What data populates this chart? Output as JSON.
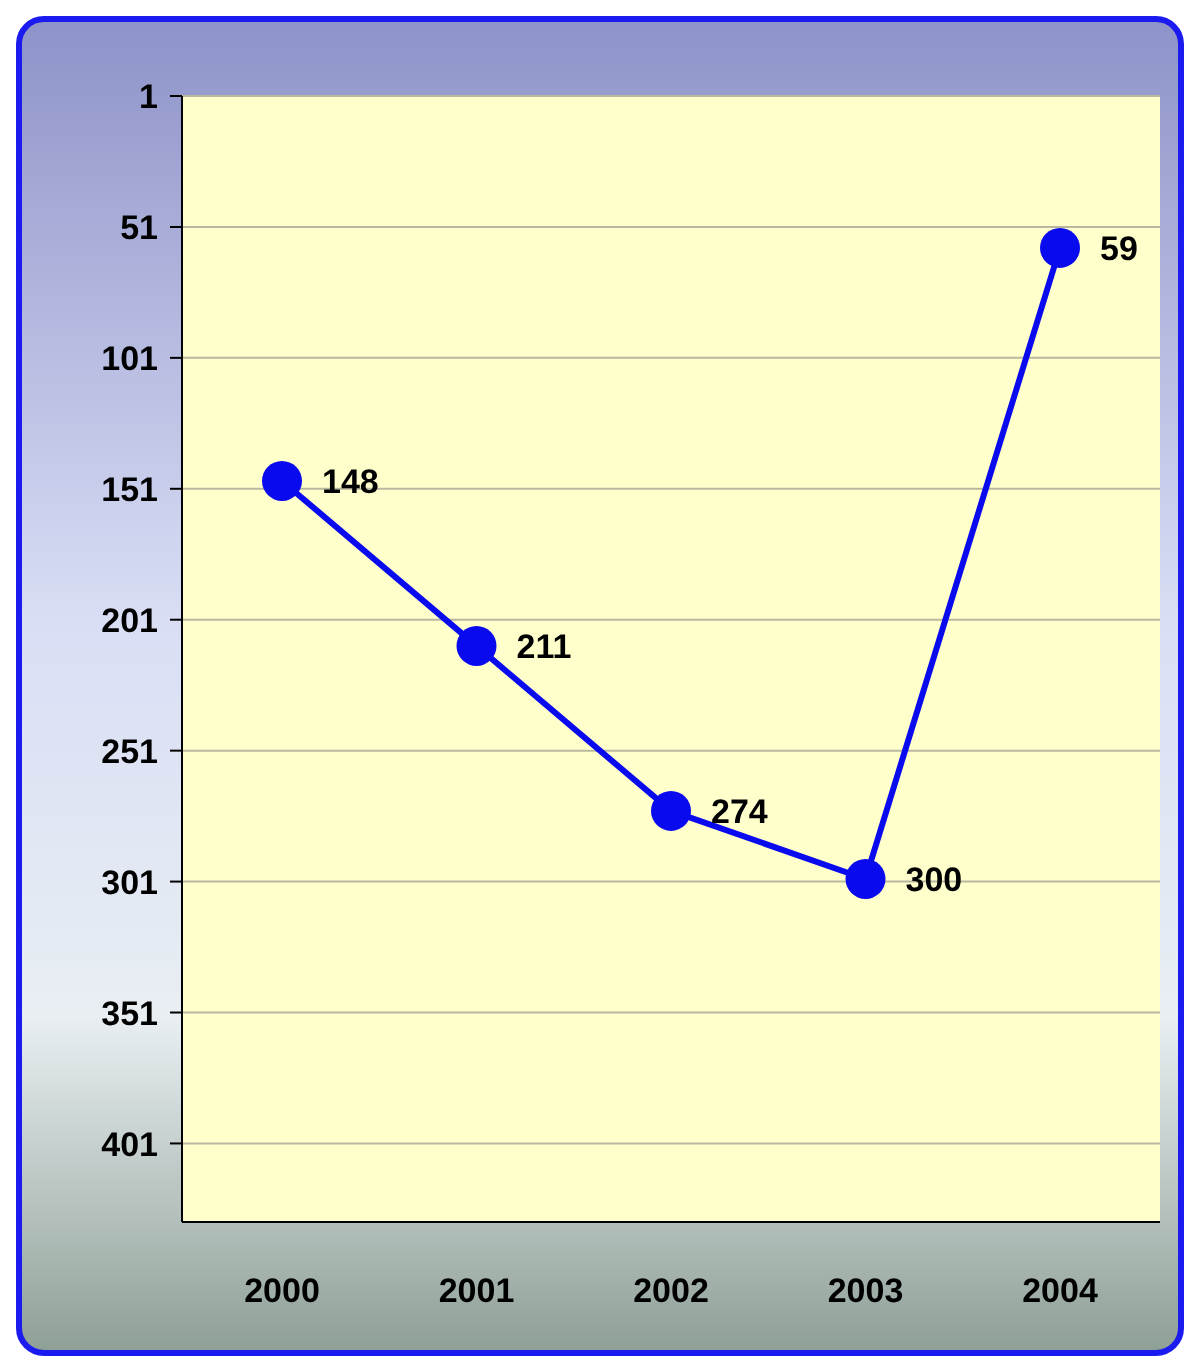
{
  "chart_data": {
    "type": "line",
    "categories": [
      "2000",
      "2001",
      "2002",
      "2003",
      "2004"
    ],
    "series": [
      {
        "color": "#0a0aee",
        "values": [
          148,
          211,
          274,
          300,
          59
        ]
      }
    ],
    "ylim": [
      431,
      1
    ],
    "yticks": [
      1,
      51,
      101,
      151,
      201,
      251,
      301,
      351,
      401
    ],
    "grid": "y",
    "marker": "circle",
    "line_style": "solid",
    "data_labels": true
  }
}
